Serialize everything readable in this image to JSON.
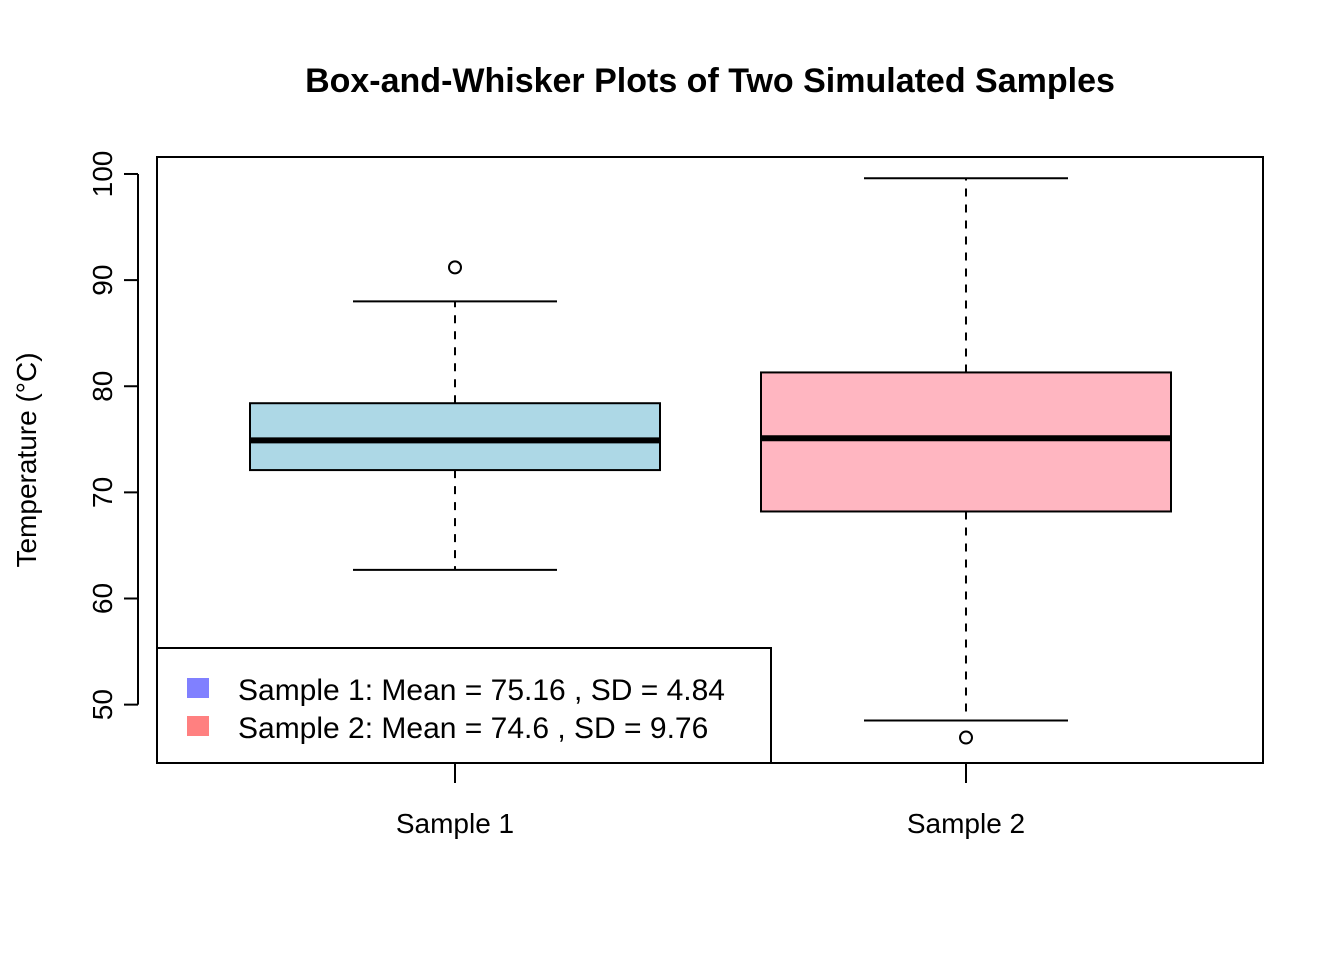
{
  "chart_data": {
    "type": "box",
    "title": "Box-and-Whisker Plots of Two Simulated Samples",
    "xlabel": "",
    "ylabel": "Temperature (°C)",
    "ylim": [
      44.5,
      101.6
    ],
    "yticks": [
      50,
      60,
      70,
      80,
      90,
      100
    ],
    "grid": false,
    "categories": [
      "Sample 1",
      "Sample 2"
    ],
    "boxes": [
      {
        "label": "Sample 1",
        "fill": "#ADD8E6",
        "whisker_low": 62.7,
        "q1": 72.1,
        "median": 74.9,
        "q3": 78.4,
        "whisker_high": 88.0,
        "outliers": [
          91.2
        ]
      },
      {
        "label": "Sample 2",
        "fill": "#FFB6C1",
        "whisker_low": 48.5,
        "q1": 68.2,
        "median": 75.1,
        "q3": 81.3,
        "whisker_high": 99.6,
        "outliers": [
          46.9
        ]
      }
    ],
    "legend": {
      "position": "bottom-left",
      "entries": [
        {
          "label": "Sample 1: Mean = 75.16 , SD = 4.84",
          "color": "#8080FF"
        },
        {
          "label": "Sample 2: Mean = 74.6 , SD = 9.76",
          "color": "#FF8080"
        }
      ]
    }
  }
}
